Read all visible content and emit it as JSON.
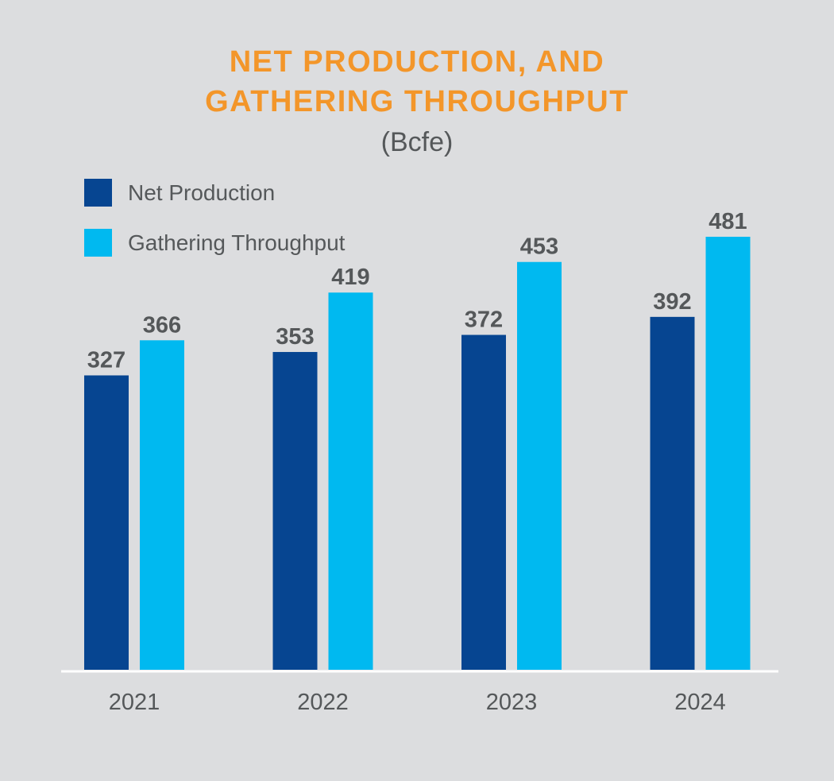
{
  "chart_data": {
    "type": "bar",
    "title_lines": [
      "NET PRODUCTION, AND",
      "GATHERING THROUGHPUT"
    ],
    "subtitle": "(Bcfe)",
    "categories": [
      "2021",
      "2022",
      "2023",
      "2024"
    ],
    "series": [
      {
        "name": "Net Production",
        "values": [
          327,
          353,
          372,
          392
        ],
        "color": "#064591"
      },
      {
        "name": "Gathering Throughput",
        "values": [
          366,
          419,
          453,
          481
        ],
        "color": "#00b9f0"
      }
    ],
    "ylim": [
      0,
      481
    ],
    "grid": false,
    "legend_position": "top-left",
    "xlabel": "",
    "ylabel": ""
  },
  "colors": {
    "background": "#dcdddf",
    "title": "#f3962a",
    "text": "#55585a",
    "axis": "#ffffff"
  }
}
